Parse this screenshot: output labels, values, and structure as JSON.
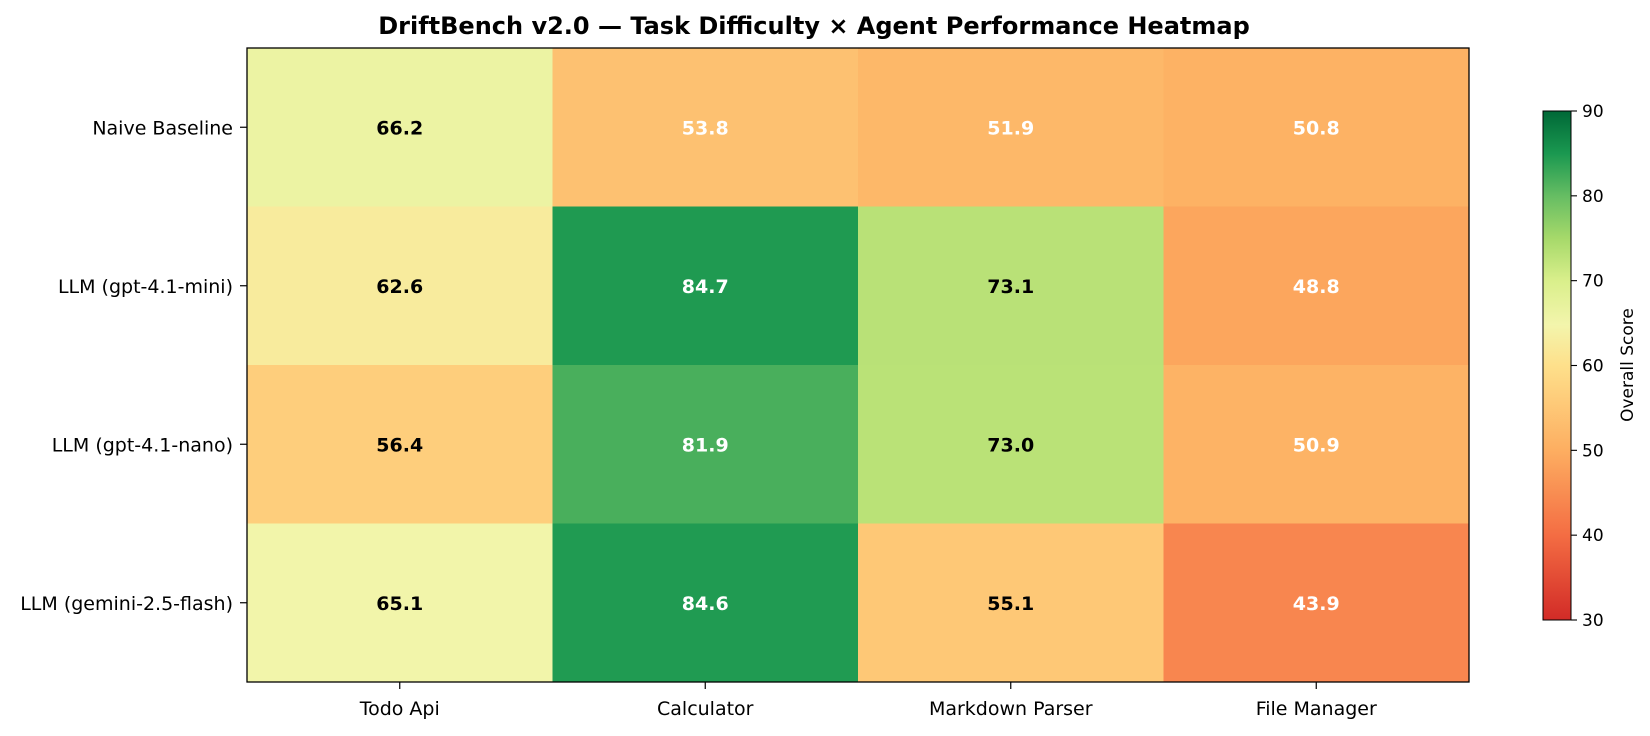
{
  "chart_data": {
    "type": "heatmap",
    "title": "DriftBench v2.0 — Task Difficulty × Agent Performance Heatmap",
    "rows": [
      "Naive Baseline",
      "LLM (gpt-4.1-mini)",
      "LLM (gpt-4.1-nano)",
      "LLM (gemini-2.5-flash)"
    ],
    "columns": [
      "Todo Api",
      "Calculator",
      "Markdown Parser",
      "File Manager"
    ],
    "values": [
      [
        66.2,
        53.8,
        51.9,
        50.8
      ],
      [
        62.6,
        84.7,
        73.1,
        48.8
      ],
      [
        56.4,
        81.9,
        73.0,
        50.9
      ],
      [
        65.1,
        84.6,
        55.1,
        43.9
      ]
    ],
    "colorbar": {
      "label": "Overall Score",
      "min": 30,
      "max": 90,
      "ticks": [
        30,
        40,
        50,
        60,
        70,
        80,
        90
      ],
      "colormap": "RdYlGn"
    }
  }
}
